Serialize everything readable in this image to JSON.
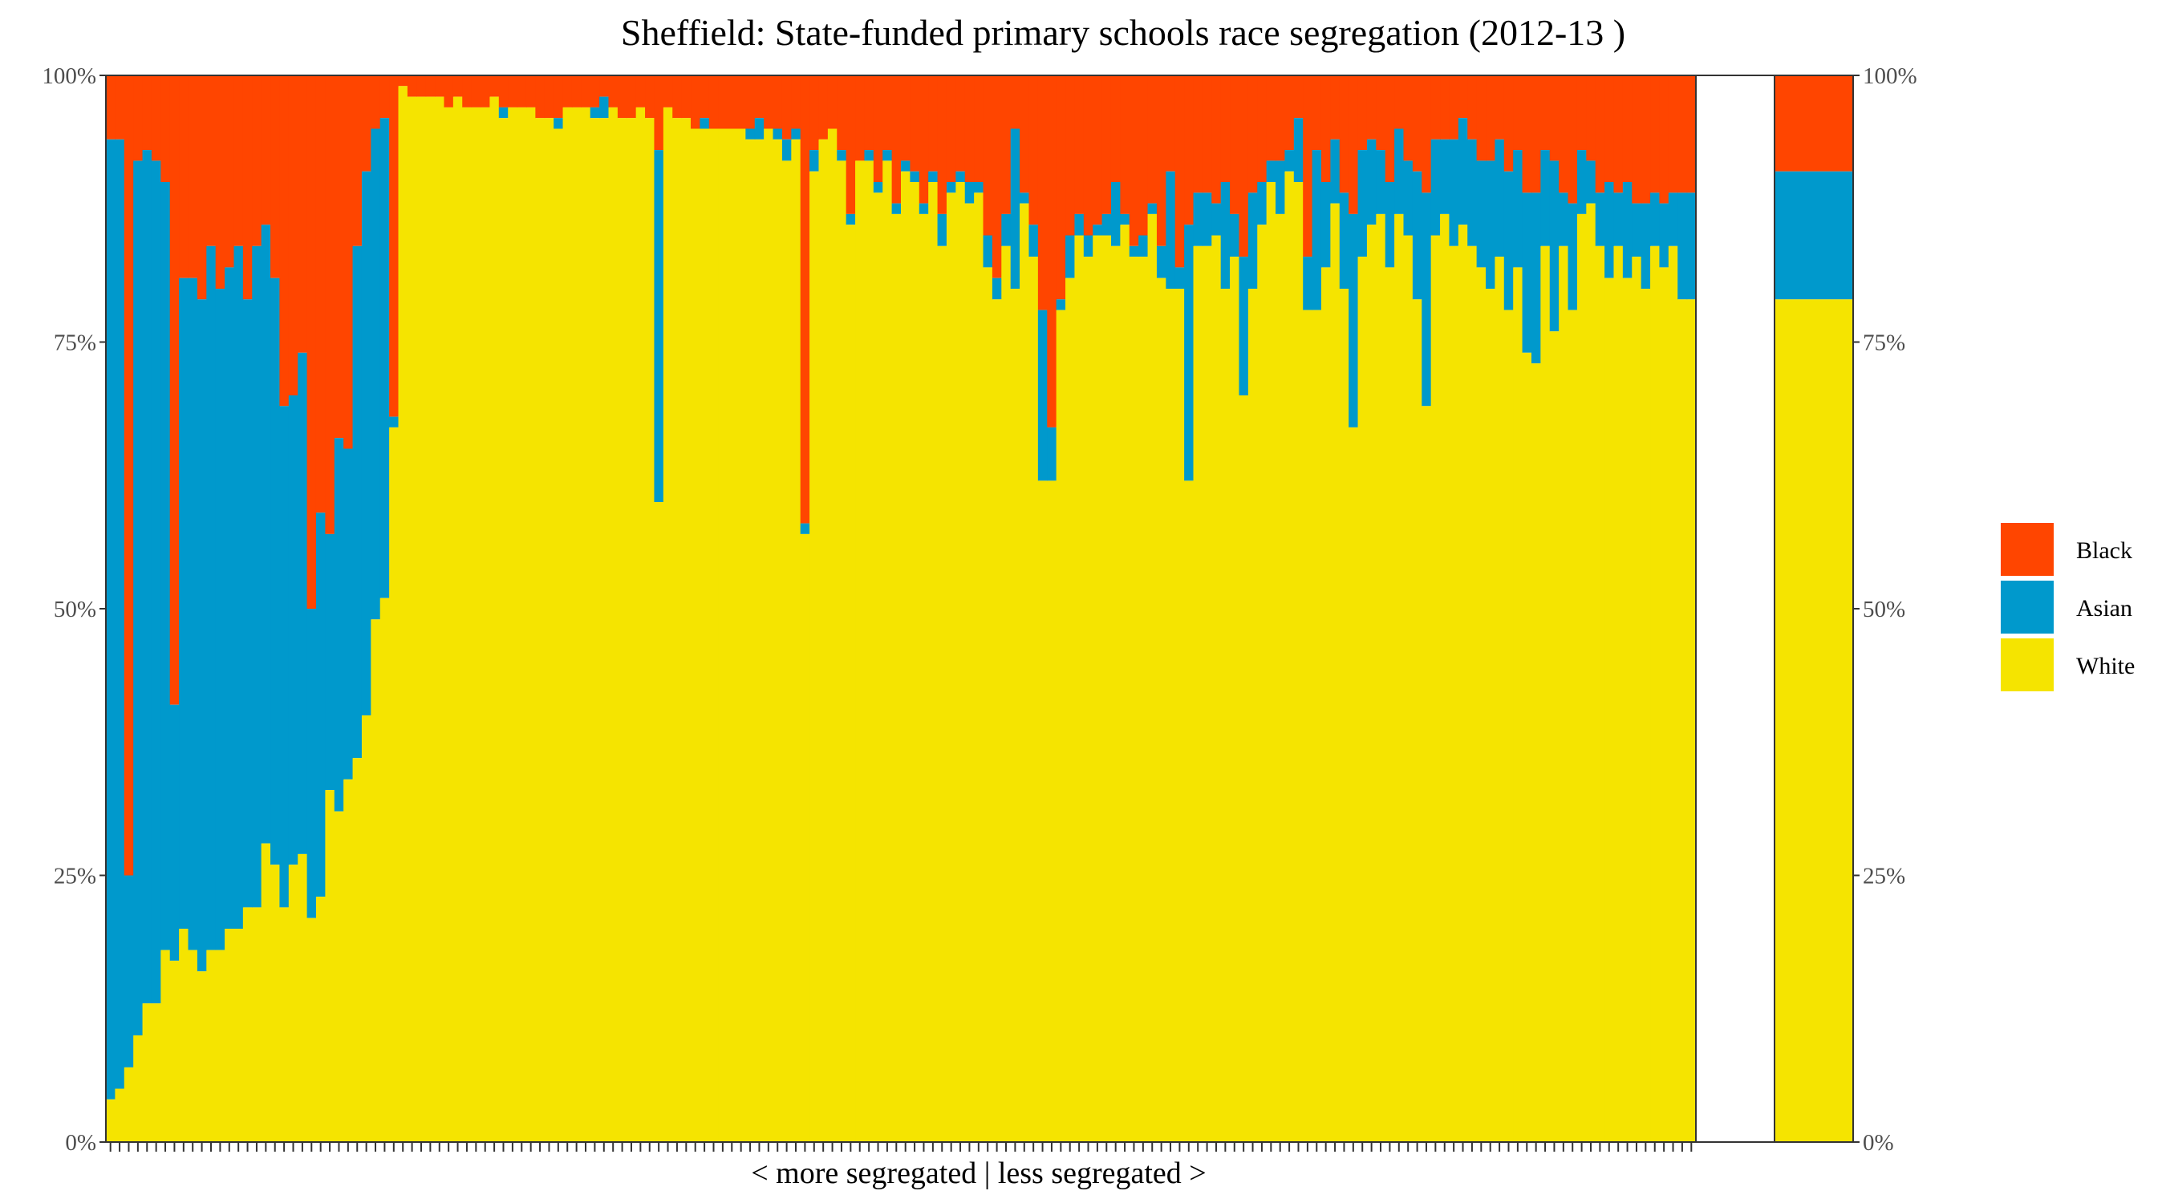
{
  "chart_data": {
    "type": "bar",
    "title": "Sheffield: State-funded primary schools race segregation (2012-13 )",
    "xlabel": "< more segregated | less segregated >",
    "ylabel": "",
    "ylim": [
      0,
      1
    ],
    "y_ticks": [
      "0%",
      "25%",
      "50%",
      "75%",
      "100%"
    ],
    "legend": [
      {
        "name": "Black",
        "color": "#ff4500"
      },
      {
        "name": "Asian",
        "color": "#0099cc"
      },
      {
        "name": "White",
        "color": "#f5e400"
      }
    ],
    "series_order_bottom_to_top": [
      "White",
      "Asian",
      "Black"
    ],
    "schools": {
      "white": [
        0.04,
        0.05,
        0.07,
        0.1,
        0.13,
        0.13,
        0.18,
        0.17,
        0.2,
        0.18,
        0.16,
        0.18,
        0.18,
        0.2,
        0.2,
        0.22,
        0.22,
        0.28,
        0.26,
        0.22,
        0.26,
        0.27,
        0.21,
        0.23,
        0.33,
        0.31,
        0.34,
        0.36,
        0.4,
        0.49,
        0.51,
        0.67,
        0.99,
        0.98,
        0.98,
        0.98,
        0.98,
        0.97,
        0.98,
        0.97,
        0.97,
        0.97,
        0.98,
        0.96,
        0.97,
        0.97,
        0.97,
        0.96,
        0.96,
        0.95,
        0.97,
        0.97,
        0.97,
        0.96,
        0.96,
        0.97,
        0.96,
        0.96,
        0.97,
        0.96,
        0.6,
        0.97,
        0.96,
        0.96,
        0.95,
        0.95,
        0.95,
        0.95,
        0.95,
        0.95,
        0.94,
        0.94,
        0.95,
        0.94,
        0.92,
        0.94,
        0.57,
        0.91,
        0.94,
        0.95,
        0.92,
        0.86,
        0.92,
        0.92,
        0.89,
        0.92,
        0.87,
        0.91,
        0.9,
        0.87,
        0.9,
        0.84,
        0.89,
        0.9,
        0.88,
        0.89,
        0.82,
        0.79,
        0.84,
        0.8,
        0.88,
        0.83,
        0.62,
        0.62,
        0.78,
        0.81,
        0.85,
        0.83,
        0.85,
        0.85,
        0.84,
        0.86,
        0.83,
        0.83,
        0.87,
        0.81,
        0.8,
        0.8,
        0.62,
        0.84,
        0.84,
        0.85,
        0.8,
        0.83,
        0.7,
        0.8,
        0.86,
        0.9,
        0.87,
        0.91,
        0.9,
        0.78,
        0.78,
        0.82,
        0.88,
        0.8,
        0.67,
        0.83,
        0.86,
        0.87,
        0.82,
        0.87,
        0.85,
        0.79,
        0.69,
        0.85,
        0.87,
        0.84,
        0.86,
        0.84,
        0.82,
        0.8,
        0.83,
        0.78,
        0.82,
        0.74,
        0.73,
        0.84,
        0.76,
        0.84,
        0.78,
        0.87,
        0.88,
        0.84,
        0.81,
        0.84,
        0.81,
        0.83,
        0.8,
        0.84,
        0.82,
        0.84,
        0.79,
        0.79
      ],
      "asian": [
        0.9,
        0.89,
        0.18,
        0.82,
        0.8,
        0.79,
        0.72,
        0.24,
        0.61,
        0.63,
        0.63,
        0.66,
        0.62,
        0.62,
        0.64,
        0.57,
        0.62,
        0.58,
        0.55,
        0.47,
        0.44,
        0.47,
        0.29,
        0.36,
        0.24,
        0.35,
        0.31,
        0.48,
        0.51,
        0.46,
        0.45,
        0.01,
        0.0,
        0.0,
        0.0,
        0.0,
        0.0,
        0.0,
        0.0,
        0.0,
        0.0,
        0.0,
        0.0,
        0.01,
        0.0,
        0.0,
        0.0,
        0.0,
        0.0,
        0.01,
        0.0,
        0.0,
        0.0,
        0.01,
        0.02,
        0.0,
        0.0,
        0.0,
        0.0,
        0.0,
        0.33,
        0.0,
        0.0,
        0.0,
        0.0,
        0.01,
        0.0,
        0.0,
        0.0,
        0.0,
        0.01,
        0.02,
        0.0,
        0.01,
        0.02,
        0.01,
        0.01,
        0.02,
        0.0,
        0.0,
        0.01,
        0.01,
        0.0,
        0.01,
        0.01,
        0.01,
        0.01,
        0.01,
        0.01,
        0.01,
        0.01,
        0.03,
        0.01,
        0.01,
        0.02,
        0.01,
        0.03,
        0.02,
        0.03,
        0.15,
        0.01,
        0.03,
        0.16,
        0.05,
        0.01,
        0.04,
        0.02,
        0.02,
        0.01,
        0.02,
        0.06,
        0.01,
        0.01,
        0.02,
        0.01,
        0.03,
        0.11,
        0.02,
        0.24,
        0.05,
        0.05,
        0.03,
        0.1,
        0.04,
        0.13,
        0.09,
        0.04,
        0.02,
        0.05,
        0.02,
        0.06,
        0.05,
        0.15,
        0.08,
        0.06,
        0.09,
        0.2,
        0.1,
        0.08,
        0.06,
        0.08,
        0.08,
        0.07,
        0.12,
        0.2,
        0.09,
        0.07,
        0.1,
        0.1,
        0.1,
        0.1,
        0.12,
        0.11,
        0.13,
        0.11,
        0.15,
        0.16,
        0.09,
        0.16,
        0.05,
        0.1,
        0.06,
        0.04,
        0.05,
        0.09,
        0.05,
        0.09,
        0.05,
        0.08,
        0.05,
        0.06,
        0.05,
        0.1,
        0.1
      ]
    }
  }
}
